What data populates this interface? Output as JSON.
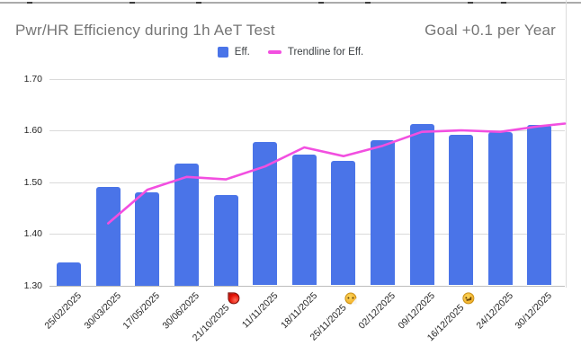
{
  "header": {
    "title": "Pwr/HR Efficiency during 1h AeT Test",
    "goal_label": "Goal +0.1 per Year",
    "title_color": "#757575"
  },
  "legend": {
    "items": [
      {
        "label": "Eff.",
        "swatch": "square",
        "color": "#4a74e8"
      },
      {
        "label": "Trendline for Eff.",
        "swatch": "dash",
        "color": "#f24fe0"
      }
    ]
  },
  "chart_data": {
    "type": "bar",
    "title": "Pwr/HR Efficiency during 1h AeT Test",
    "subtitle_right": "Goal +0.1 per Year",
    "grid": true,
    "legend_position": "top",
    "ylim": [
      1.3,
      1.7
    ],
    "ytick_labels": [
      "1.70",
      "1.60",
      "1.50",
      "1.40",
      "1.30"
    ],
    "yticks": [
      1.7,
      1.6,
      1.5,
      1.4,
      1.3
    ],
    "categories": [
      "25/02/2025",
      "30/03/2025",
      "17/05/2025",
      "30/06/2025",
      "21/10/2025",
      "11/11/2025",
      "18/11/2025",
      "25/11/2025",
      "02/12/2025",
      "09/12/2025",
      "16/12/2025",
      "24/12/2025",
      "30/12/2025"
    ],
    "series": [
      {
        "name": "Eff.",
        "type": "bar",
        "color": "#4a74e8",
        "values": [
          1.345,
          1.49,
          1.48,
          1.535,
          1.475,
          1.578,
          1.553,
          1.541,
          1.581,
          1.612,
          1.592,
          1.597,
          1.611
        ]
      },
      {
        "name": "Trendline for Eff.",
        "type": "line",
        "color": "#f24fe0",
        "values": [
          null,
          1.42,
          1.485,
          1.51,
          1.505,
          1.53,
          1.567,
          1.55,
          1.57,
          1.597,
          1.6,
          1.597,
          1.608
        ],
        "end_extension_value": 1.613
      }
    ],
    "annotations": [
      {
        "category": "21/10/2025",
        "index": 4,
        "icon": "blood-drop-emoji"
      },
      {
        "category": "25/11/2025",
        "index": 7,
        "icon": "sneezing-face-emoji"
      },
      {
        "category": "16/12/2025",
        "index": 10,
        "icon": "sick-face-emoji"
      }
    ]
  }
}
